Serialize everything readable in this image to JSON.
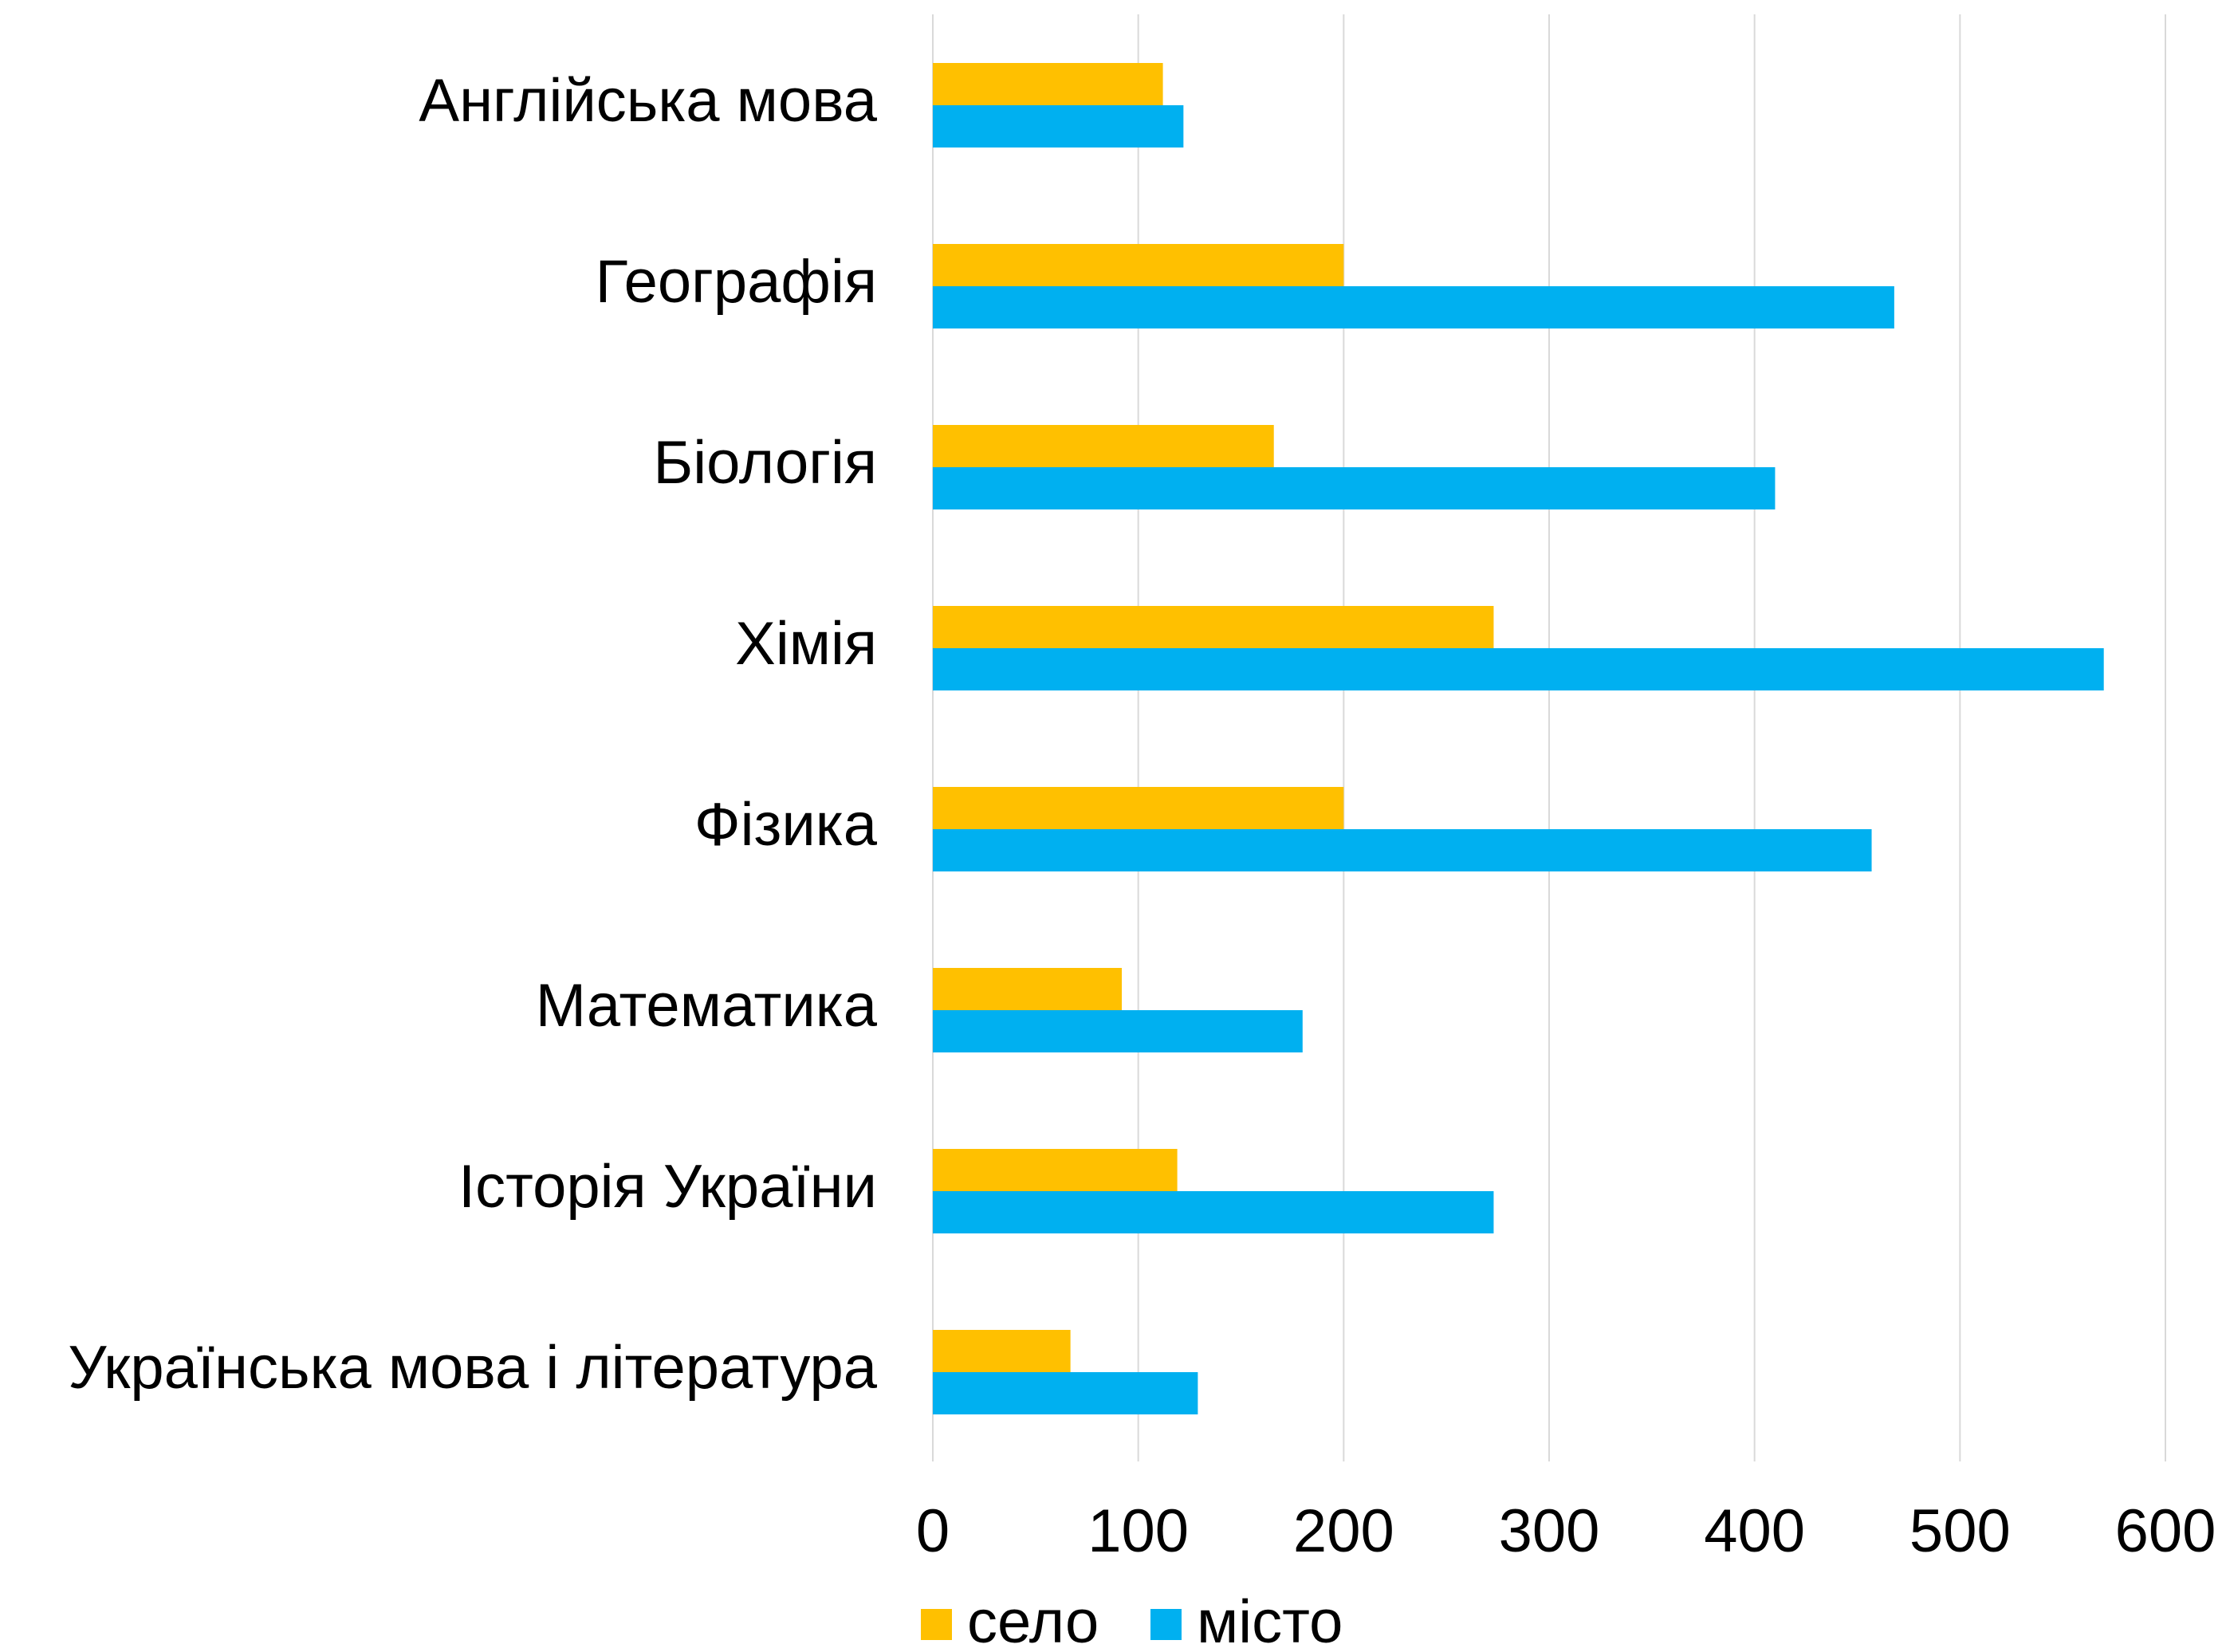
{
  "chart_data": {
    "type": "bar",
    "orientation": "horizontal",
    "categories": [
      "Англійська мова",
      "Географія",
      "Біологія",
      "Хімія",
      "Фізика",
      "Математика",
      "Історія України",
      "Українська мова і література"
    ],
    "series": [
      {
        "name": "село",
        "color": "#FFC000",
        "values": [
          112,
          200,
          166,
          273,
          200,
          92,
          119,
          67
        ]
      },
      {
        "name": "місто",
        "color": "#00B0F0",
        "values": [
          122,
          468,
          410,
          570,
          457,
          180,
          273,
          129
        ]
      }
    ],
    "xlim": [
      0,
      600
    ],
    "xticks": [
      0,
      100,
      200,
      300,
      400,
      500,
      600
    ],
    "grid": true,
    "legend": "bottom"
  }
}
